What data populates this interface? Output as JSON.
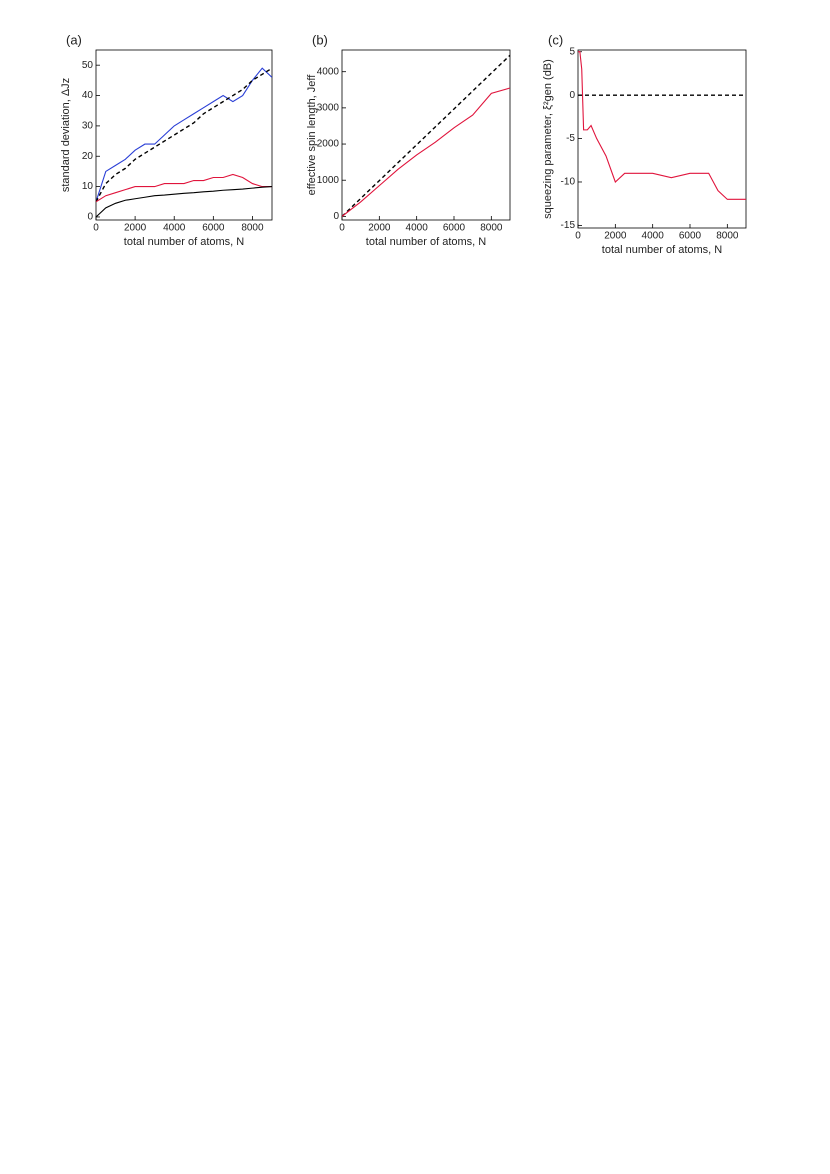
{
  "chart_data": [
    {
      "type": "line",
      "label": "(a)",
      "x_label": "total number of atoms, N",
      "y_label": "standard deviation, ΔJz",
      "x": [
        0,
        500,
        1000,
        1500,
        2000,
        2500,
        3000,
        3500,
        4000,
        4500,
        5000,
        5500,
        6000,
        6500,
        7000,
        7500,
        8000,
        8500,
        9000
      ],
      "xlim": [
        0,
        9000
      ],
      "xticks": [
        0,
        2000,
        4000,
        6000,
        8000
      ],
      "ylim": [
        -1,
        55
      ],
      "yticks": [
        0,
        10,
        20,
        30,
        40,
        50
      ],
      "series": [
        {
          "color": "#2a3fd6",
          "style": "solid",
          "values": [
            5,
            15,
            17,
            19,
            22,
            24,
            24,
            27,
            30,
            32,
            34,
            36,
            38,
            40,
            38,
            40,
            45,
            49,
            46
          ]
        },
        {
          "color": "#000000",
          "style": "dashed",
          "values": [
            5,
            11,
            14,
            16,
            19,
            21,
            23,
            25,
            27,
            29,
            31,
            34,
            36,
            38,
            40,
            42,
            45,
            47,
            49
          ]
        },
        {
          "color": "#e0143c",
          "style": "solid",
          "values": [
            5,
            7,
            8,
            9,
            10,
            10,
            10,
            11,
            11,
            11,
            12,
            12,
            13,
            13,
            14,
            13,
            11,
            10,
            10
          ]
        },
        {
          "color": "#000000",
          "style": "solid",
          "values": [
            0,
            3,
            4.5,
            5.5,
            6,
            6.5,
            7,
            7.2,
            7.5,
            7.8,
            8,
            8.3,
            8.5,
            8.8,
            9,
            9.2,
            9.5,
            9.8,
            10
          ]
        }
      ]
    },
    {
      "type": "line",
      "label": "(b)",
      "x_label": "total number of atoms, N",
      "y_label": "effective spin length, Jeff",
      "x": [
        0,
        1000,
        2000,
        3000,
        4000,
        5000,
        6000,
        7000,
        8000,
        9000
      ],
      "xlim": [
        0,
        9000
      ],
      "xticks": [
        0,
        2000,
        4000,
        6000,
        8000
      ],
      "ylim": [
        -100,
        4600
      ],
      "yticks": [
        0,
        1000,
        2000,
        3000,
        4000
      ],
      "series": [
        {
          "color": "#000000",
          "style": "dashed",
          "values": [
            0,
            495,
            990,
            1485,
            1980,
            2475,
            2970,
            3465,
            3960,
            4455
          ]
        },
        {
          "color": "#e0143c",
          "style": "solid",
          "values": [
            0,
            400,
            850,
            1300,
            1700,
            2050,
            2450,
            2800,
            3400,
            3550
          ]
        }
      ]
    },
    {
      "type": "line",
      "label": "(c)",
      "x_label": "total number of atoms, N",
      "y_label": "squeezing parameter, ξ²gen (dB)",
      "x": [
        0,
        100,
        200,
        300,
        500,
        700,
        1000,
        1500,
        2000,
        2500,
        3000,
        4000,
        5000,
        6000,
        7000,
        7500,
        8000,
        8500,
        9000
      ],
      "xlim": [
        0,
        9000
      ],
      "xticks": [
        0,
        2000,
        4000,
        6000,
        8000
      ],
      "ylim": [
        -15.3,
        5.2
      ],
      "yticks": [
        5,
        0,
        -5,
        -10,
        -15
      ],
      "series": [
        {
          "color": "#000000",
          "style": "dashed",
          "values": [
            0,
            0,
            0,
            0,
            0,
            0,
            0,
            0,
            0,
            0,
            0,
            0,
            0,
            0,
            0,
            0,
            0,
            0,
            0
          ]
        },
        {
          "color": "#e0143c",
          "style": "solid",
          "values": [
            5,
            5,
            3,
            -4,
            -4,
            -3.5,
            -5,
            -7,
            -10,
            -9,
            -9,
            -9,
            -9.5,
            -9,
            -9,
            -11,
            -12,
            -12,
            -12
          ]
        }
      ]
    }
  ]
}
